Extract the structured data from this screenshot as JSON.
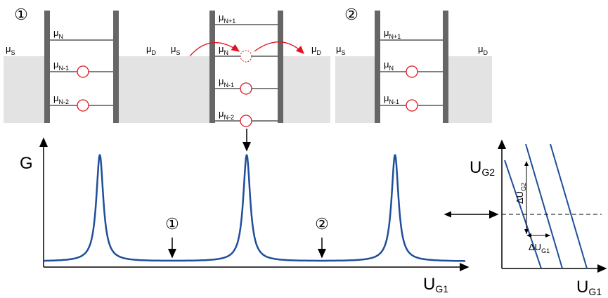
{
  "panels": [
    {
      "marker": "①",
      "source": {
        "symbol": "μ",
        "sub": "S"
      },
      "drain": {
        "symbol": "μ",
        "sub": "D"
      },
      "levels": [
        {
          "symbol": "μ",
          "sub": "N"
        },
        {
          "symbol": "μ",
          "sub": "N-1"
        },
        {
          "symbol": "μ",
          "sub": "N-2"
        }
      ]
    },
    {
      "source": {
        "symbol": "μ",
        "sub": "S"
      },
      "drain": {
        "symbol": "μ",
        "sub": "D"
      },
      "levels": [
        {
          "symbol": "μ",
          "sub": "N+1"
        },
        {
          "symbol": "μ",
          "sub": "N"
        },
        {
          "symbol": "μ",
          "sub": "N-1"
        },
        {
          "symbol": "μ",
          "sub": "N-2"
        }
      ]
    },
    {
      "marker": "②",
      "source": {
        "symbol": "μ",
        "sub": "S"
      },
      "drain": {
        "symbol": "μ",
        "sub": "D"
      },
      "levels": [
        {
          "symbol": "μ",
          "sub": "N+1"
        },
        {
          "symbol": "μ",
          "sub": "N"
        },
        {
          "symbol": "μ",
          "sub": "N-1"
        }
      ]
    }
  ],
  "plot": {
    "y_label": "G",
    "x_label": {
      "symbol": "U",
      "sub": "G1"
    },
    "markers": [
      "①",
      "②"
    ]
  },
  "stability": {
    "y_label": {
      "symbol": "U",
      "sub": "G2"
    },
    "x_label": {
      "symbol": "U",
      "sub": "G1"
    },
    "delta_y": {
      "symbol": "ΔU",
      "sub": "G2"
    },
    "delta_x": {
      "symbol": "ΔU",
      "sub": "G1"
    }
  }
}
